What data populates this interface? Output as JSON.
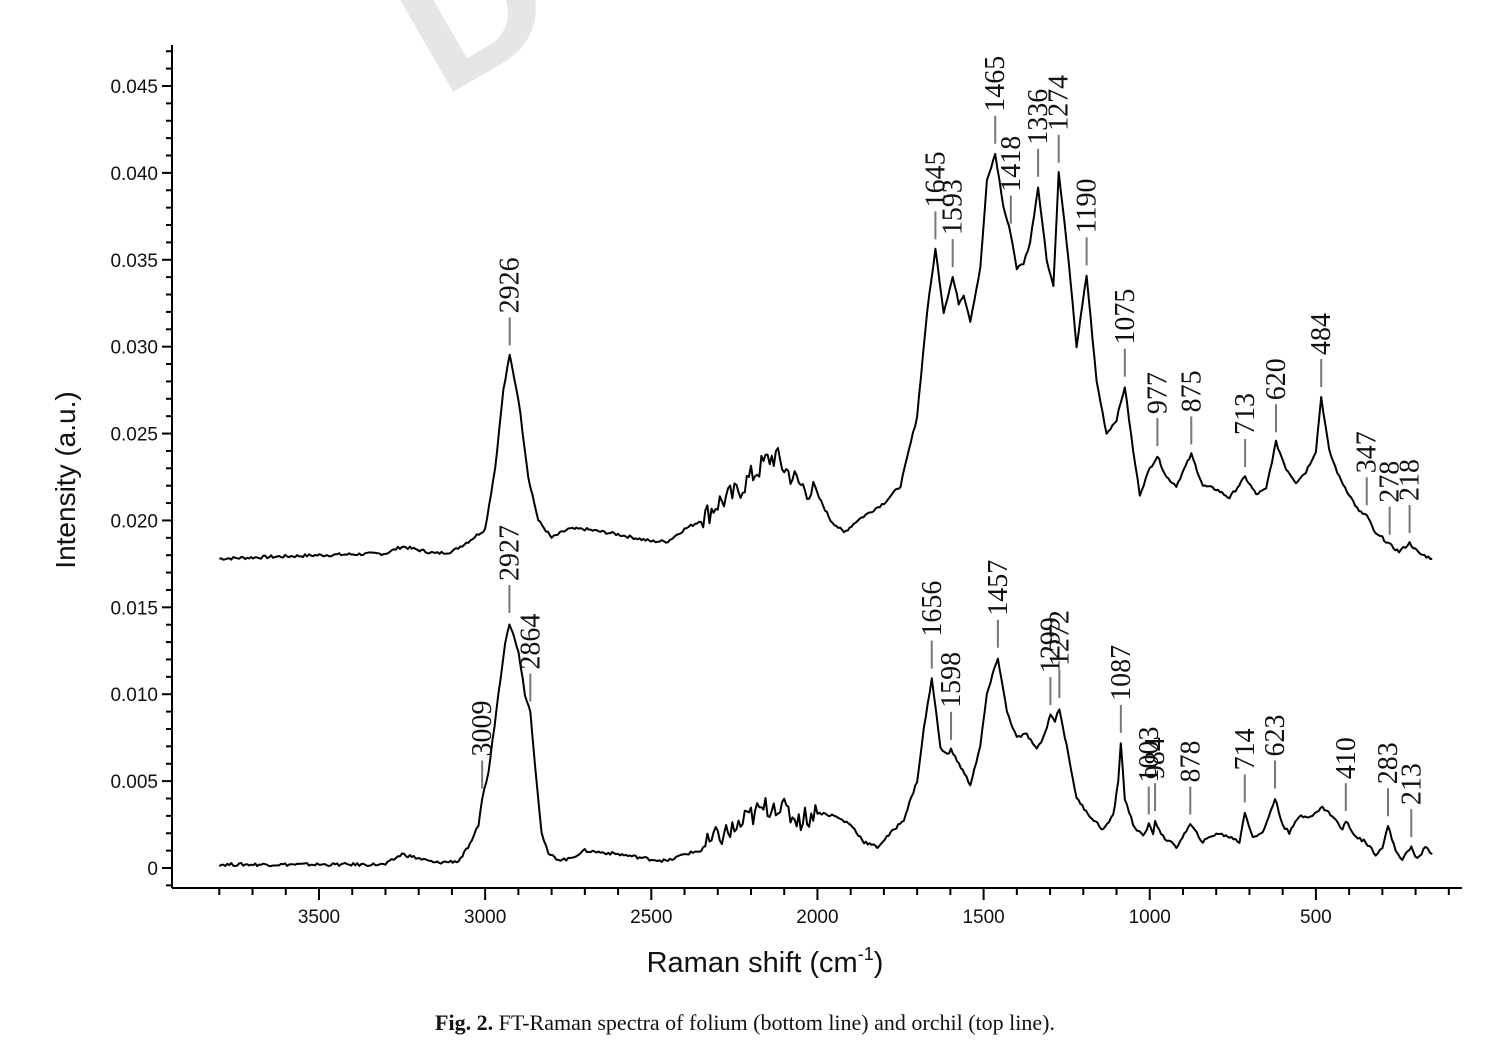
{
  "figure": {
    "caption_label": "Fig. 2.",
    "caption_text": "FT-Raman spectra of folium (bottom line) and orchil (top line).",
    "watermark": "D"
  },
  "chart_data": {
    "type": "line",
    "title": "",
    "xlabel": "Raman shift (cm-1)",
    "xlabel_main": "Raman shift (cm",
    "xlabel_sup": "-1",
    "xlabel_close": ")",
    "ylabel": "Intensity (a.u.)",
    "xlim": [
      3800,
      100
    ],
    "x_reversed": true,
    "ylim": [
      -0.001,
      0.047
    ],
    "x_ticks": [
      3500,
      3000,
      2500,
      2000,
      1500,
      1000,
      500
    ],
    "x_tick_labels": [
      "3500",
      "3000",
      "2500",
      "2000",
      "1500",
      "1000",
      "500"
    ],
    "y_ticks": [
      0,
      0.005,
      0.01,
      0.015,
      0.02,
      0.025,
      0.03,
      0.035,
      0.04,
      0.045
    ],
    "y_tick_labels": [
      "0",
      "0.005",
      "0.010",
      "0.015",
      "0.020",
      "0.025",
      "0.030",
      "0.035",
      "0.040",
      "0.045"
    ],
    "grid": false,
    "legend": "none (identified in caption)",
    "series": [
      {
        "name": "orchil (top line)",
        "color": "#000000",
        "x": [
          3800,
          3500,
          3300,
          3250,
          3150,
          3100,
          3050,
          3000,
          2970,
          2945,
          2926,
          2900,
          2870,
          2840,
          2800,
          2750,
          2700,
          2600,
          2500,
          2450,
          2400,
          2350,
          2300,
          2250,
          2200,
          2150,
          2125,
          2100,
          2075,
          2050,
          2000,
          1960,
          1920,
          1880,
          1800,
          1750,
          1700,
          1670,
          1645,
          1620,
          1593,
          1575,
          1560,
          1540,
          1510,
          1490,
          1465,
          1440,
          1418,
          1400,
          1380,
          1360,
          1336,
          1310,
          1290,
          1274,
          1250,
          1220,
          1190,
          1160,
          1130,
          1100,
          1075,
          1050,
          1030,
          1000,
          977,
          950,
          920,
          875,
          840,
          800,
          760,
          713,
          680,
          650,
          620,
          590,
          560,
          530,
          500,
          484,
          460,
          430,
          400,
          370,
          347,
          320,
          300,
          278,
          250,
          218,
          190,
          150
        ],
        "y": [
          0.0178,
          0.018,
          0.0181,
          0.0185,
          0.0181,
          0.0182,
          0.0188,
          0.0195,
          0.023,
          0.0275,
          0.0295,
          0.027,
          0.0225,
          0.02,
          0.019,
          0.0195,
          0.0195,
          0.0192,
          0.0188,
          0.0188,
          0.0195,
          0.02,
          0.021,
          0.0215,
          0.0225,
          0.0235,
          0.0237,
          0.023,
          0.0225,
          0.022,
          0.0215,
          0.02,
          0.0193,
          0.02,
          0.021,
          0.022,
          0.026,
          0.032,
          0.0356,
          0.032,
          0.034,
          0.0325,
          0.033,
          0.0315,
          0.0345,
          0.0395,
          0.0411,
          0.038,
          0.0365,
          0.0345,
          0.0348,
          0.036,
          0.0392,
          0.035,
          0.0335,
          0.04,
          0.036,
          0.03,
          0.0341,
          0.028,
          0.025,
          0.0258,
          0.0277,
          0.024,
          0.0215,
          0.023,
          0.0237,
          0.0225,
          0.022,
          0.0238,
          0.022,
          0.0218,
          0.0213,
          0.0225,
          0.0215,
          0.0218,
          0.0245,
          0.023,
          0.0222,
          0.0228,
          0.024,
          0.0271,
          0.024,
          0.0225,
          0.0215,
          0.0205,
          0.0203,
          0.0192,
          0.019,
          0.0186,
          0.0182,
          0.0187,
          0.0181,
          0.0178
        ],
        "peak_labels": [
          2926,
          1645,
          1593,
          1465,
          1418,
          1336,
          1274,
          1190,
          1075,
          977,
          875,
          713,
          620,
          484,
          347,
          278,
          218
        ]
      },
      {
        "name": "folium (bottom line)",
        "color": "#000000",
        "x": [
          3800,
          3500,
          3300,
          3250,
          3150,
          3080,
          3040,
          3020,
          3009,
          2990,
          2960,
          2940,
          2927,
          2900,
          2880,
          2864,
          2850,
          2830,
          2810,
          2780,
          2750,
          2700,
          2600,
          2500,
          2450,
          2400,
          2350,
          2300,
          2250,
          2200,
          2150,
          2125,
          2100,
          2075,
          2050,
          2000,
          1950,
          1900,
          1860,
          1820,
          1780,
          1740,
          1700,
          1680,
          1656,
          1630,
          1610,
          1598,
          1580,
          1540,
          1510,
          1490,
          1457,
          1430,
          1400,
          1370,
          1340,
          1320,
          1299,
          1285,
          1272,
          1250,
          1220,
          1180,
          1140,
          1110,
          1095,
          1087,
          1075,
          1050,
          1020,
          1003,
          990,
          984,
          960,
          920,
          878,
          840,
          800,
          760,
          730,
          714,
          690,
          660,
          623,
          600,
          580,
          550,
          510,
          480,
          450,
          420,
          410,
          380,
          350,
          320,
          300,
          283,
          260,
          240,
          213,
          195,
          170,
          150
        ],
        "y": [
          0.0002,
          0.0002,
          0.0002,
          0.0008,
          0.0003,
          0.0004,
          0.0015,
          0.0025,
          0.004,
          0.0055,
          0.01,
          0.013,
          0.0141,
          0.0125,
          0.01,
          0.009,
          0.006,
          0.002,
          0.0008,
          0.0005,
          0.0005,
          0.001,
          0.0008,
          0.0005,
          0.0004,
          0.0008,
          0.001,
          0.0018,
          0.0022,
          0.003,
          0.0035,
          0.0037,
          0.0033,
          0.003,
          0.0028,
          0.0032,
          0.003,
          0.0025,
          0.0015,
          0.0012,
          0.002,
          0.0028,
          0.005,
          0.008,
          0.0109,
          0.007,
          0.0065,
          0.0068,
          0.0062,
          0.0048,
          0.007,
          0.01,
          0.0121,
          0.009,
          0.0075,
          0.0077,
          0.0068,
          0.0075,
          0.0088,
          0.0085,
          0.0092,
          0.007,
          0.004,
          0.003,
          0.0022,
          0.003,
          0.005,
          0.0072,
          0.004,
          0.0025,
          0.0018,
          0.0025,
          0.002,
          0.0027,
          0.0018,
          0.0012,
          0.0025,
          0.0015,
          0.002,
          0.0018,
          0.0015,
          0.0032,
          0.0018,
          0.002,
          0.004,
          0.0025,
          0.002,
          0.003,
          0.003,
          0.0035,
          0.003,
          0.0022,
          0.0027,
          0.0018,
          0.0015,
          0.0008,
          0.0012,
          0.0024,
          0.001,
          0.0005,
          0.0012,
          0.0005,
          0.0012,
          0.0008
        ],
        "peak_labels": [
          3009,
          2927,
          2864,
          1656,
          1598,
          1457,
          1299,
          1272,
          1087,
          1003,
          984,
          878,
          714,
          623,
          410,
          283,
          213
        ]
      }
    ],
    "annotations": {
      "top": [
        {
          "text": "2926",
          "x": 2926,
          "y": 0.0295
        },
        {
          "text": "1645",
          "x": 1645,
          "y": 0.0356
        },
        {
          "text": "1593",
          "x": 1593,
          "y": 0.034
        },
        {
          "text": "1465",
          "x": 1465,
          "y": 0.0411
        },
        {
          "text": "1418",
          "x": 1418,
          "y": 0.0365
        },
        {
          "text": "1336",
          "x": 1336,
          "y": 0.0392
        },
        {
          "text": "1274",
          "x": 1274,
          "y": 0.04
        },
        {
          "text": "1190",
          "x": 1190,
          "y": 0.0341
        },
        {
          "text": "1075",
          "x": 1075,
          "y": 0.0277
        },
        {
          "text": "977",
          "x": 977,
          "y": 0.0237
        },
        {
          "text": "875",
          "x": 875,
          "y": 0.0238
        },
        {
          "text": "713",
          "x": 713,
          "y": 0.0225
        },
        {
          "text": "620",
          "x": 620,
          "y": 0.0245
        },
        {
          "text": "484",
          "x": 484,
          "y": 0.0271
        },
        {
          "text": "347",
          "x": 347,
          "y": 0.0203
        },
        {
          "text": "278",
          "x": 278,
          "y": 0.0186
        },
        {
          "text": "218",
          "x": 218,
          "y": 0.0187
        }
      ],
      "bottom": [
        {
          "text": "3009",
          "x": 3009,
          "y": 0.004
        },
        {
          "text": "2927",
          "x": 2927,
          "y": 0.0141
        },
        {
          "text": "2864",
          "x": 2864,
          "y": 0.009
        },
        {
          "text": "1656",
          "x": 1656,
          "y": 0.0109
        },
        {
          "text": "1598",
          "x": 1598,
          "y": 0.0068
        },
        {
          "text": "1457",
          "x": 1457,
          "y": 0.0121
        },
        {
          "text": "1299",
          "x": 1299,
          "y": 0.0088
        },
        {
          "text": "1272",
          "x": 1272,
          "y": 0.0092
        },
        {
          "text": "1087",
          "x": 1087,
          "y": 0.0072
        },
        {
          "text": "1003",
          "x": 1003,
          "y": 0.0025
        },
        {
          "text": "984",
          "x": 984,
          "y": 0.0027
        },
        {
          "text": "878",
          "x": 878,
          "y": 0.0025
        },
        {
          "text": "714",
          "x": 714,
          "y": 0.0032
        },
        {
          "text": "623",
          "x": 623,
          "y": 0.004
        },
        {
          "text": "410",
          "x": 410,
          "y": 0.0027
        },
        {
          "text": "283",
          "x": 283,
          "y": 0.0024
        },
        {
          "text": "213",
          "x": 213,
          "y": 0.0012
        }
      ]
    }
  }
}
